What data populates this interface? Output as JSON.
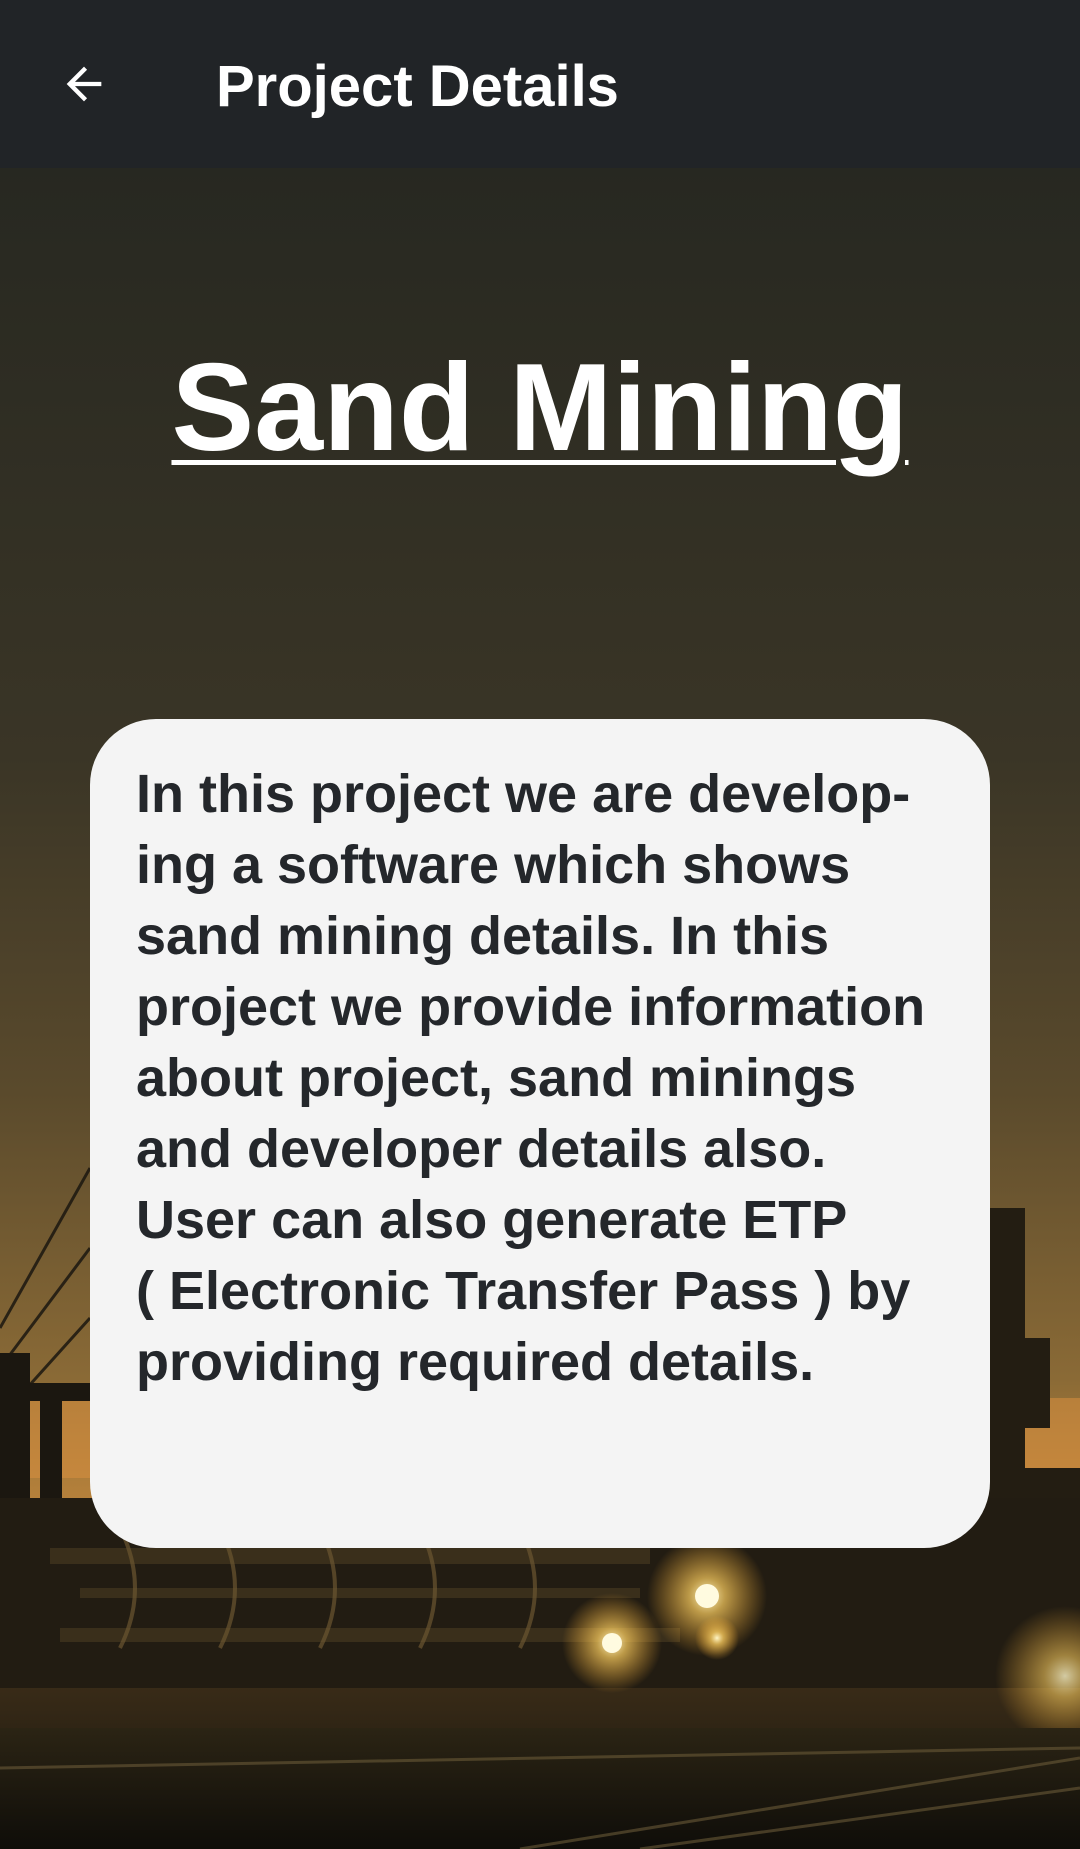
{
  "app_bar": {
    "back_icon": "arrow-left-icon",
    "title": "Project Details"
  },
  "main": {
    "title": "Sand Mining",
    "description_lines": [
      "In this project we are develop-",
      "ing a software which shows",
      "sand mining details. In this",
      "project we provide information",
      "about project, sand minings",
      "and developer details also.",
      "User can also generate ETP",
      "( Electronic Transfer Pass ) by",
      "providing required details."
    ]
  },
  "colors": {
    "app_bar": "#212427",
    "card": "#f4f4f4",
    "card_text": "#24272b",
    "title_text": "#ffffff"
  }
}
